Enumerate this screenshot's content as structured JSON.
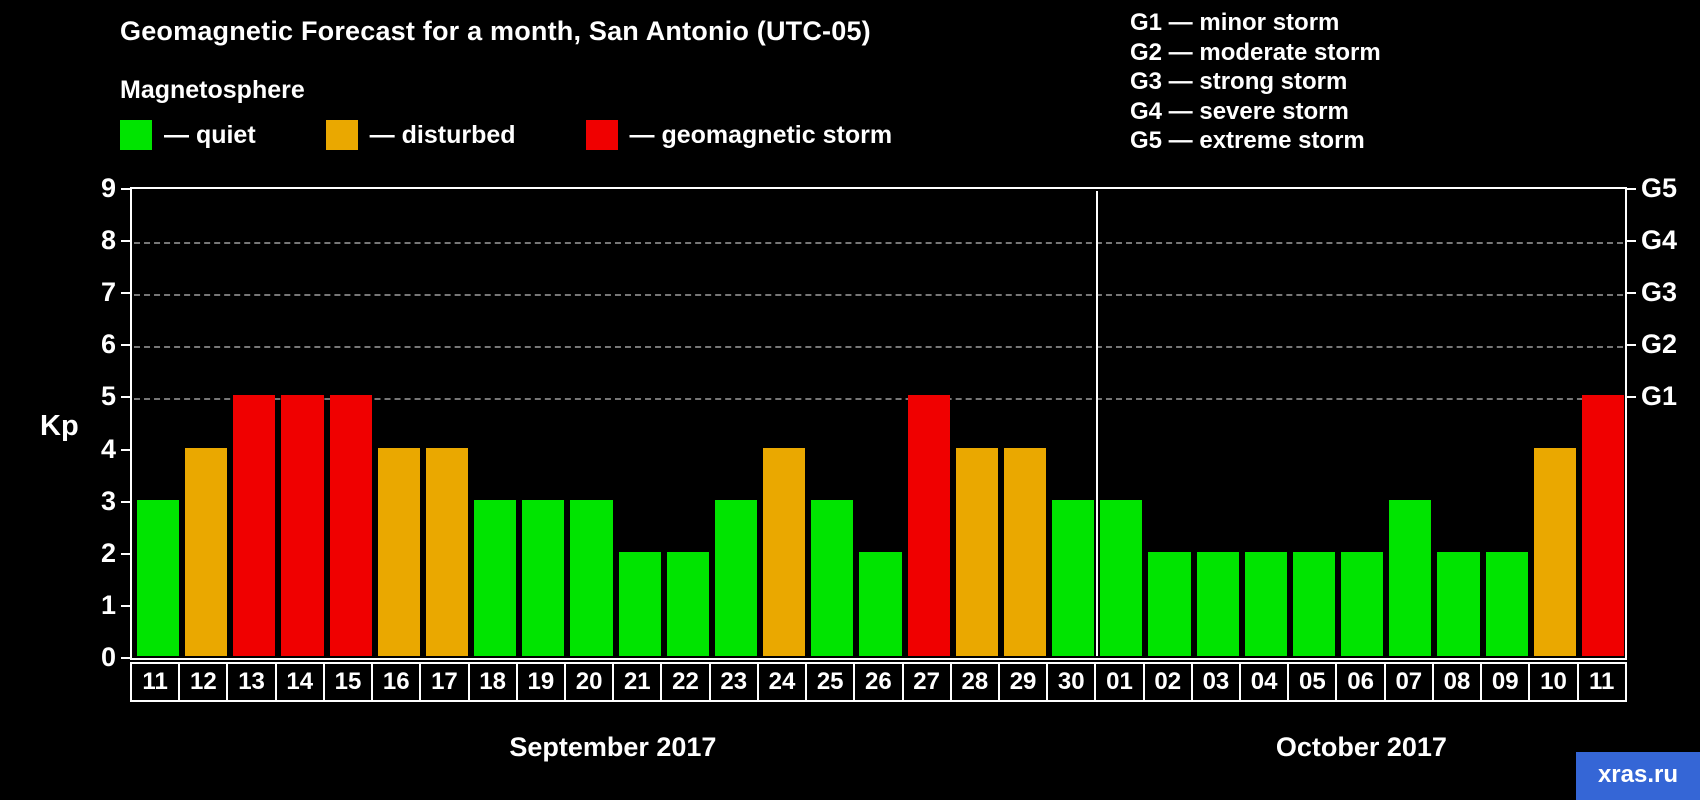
{
  "header": {
    "title": "Geomagnetic Forecast for a month, San Antonio (UTC-05)",
    "subtitle": "Magnetosphere"
  },
  "legend": {
    "items": [
      {
        "name": "quiet",
        "label": "— quiet",
        "color": "#00e400"
      },
      {
        "name": "disturbed",
        "label": "— disturbed",
        "color": "#eaa800"
      },
      {
        "name": "storm",
        "label": "— geomagnetic storm",
        "color": "#f00000"
      }
    ]
  },
  "storm_scale": {
    "items": [
      "G1 — minor storm",
      "G2 — moderate storm",
      "G3 — strong storm",
      "G4 — severe storm",
      "G5 — extreme storm"
    ]
  },
  "chart_data": {
    "type": "bar",
    "title": "Geomagnetic Forecast for a month, San Antonio (UTC-05)",
    "ylabel": "Kp",
    "ylim": [
      0,
      9
    ],
    "yticks": [
      0,
      1,
      2,
      3,
      4,
      5,
      6,
      7,
      8,
      9
    ],
    "gridline_levels": [
      5,
      6,
      7,
      8
    ],
    "grid_style": "dashed",
    "right_axis": [
      {
        "label": "G1",
        "value": 5
      },
      {
        "label": "G2",
        "value": 6
      },
      {
        "label": "G3",
        "value": 7
      },
      {
        "label": "G4",
        "value": 8
      },
      {
        "label": "G5",
        "value": 9
      }
    ],
    "categories": [
      "11",
      "12",
      "13",
      "14",
      "15",
      "16",
      "17",
      "18",
      "19",
      "20",
      "21",
      "22",
      "23",
      "24",
      "25",
      "26",
      "27",
      "28",
      "29",
      "30",
      "01",
      "02",
      "03",
      "04",
      "05",
      "06",
      "07",
      "08",
      "09",
      "10",
      "11"
    ],
    "values": [
      3,
      4,
      5,
      5,
      5,
      4,
      4,
      3,
      3,
      3,
      2,
      2,
      3,
      4,
      3,
      2,
      5,
      4,
      4,
      3,
      3,
      2,
      2,
      2,
      2,
      2,
      3,
      2,
      2,
      4,
      5
    ],
    "months": [
      {
        "label": "September 2017",
        "days": 20
      },
      {
        "label": "October 2017",
        "days": 11
      }
    ],
    "colors": {
      "quiet": "#00e400",
      "disturbed": "#eaa800",
      "storm": "#f00000"
    },
    "color_rule": "value <= 3 quiet (green), value == 4 disturbed (orange), value >= 5 storm (red)"
  },
  "watermark": "xras.ru"
}
